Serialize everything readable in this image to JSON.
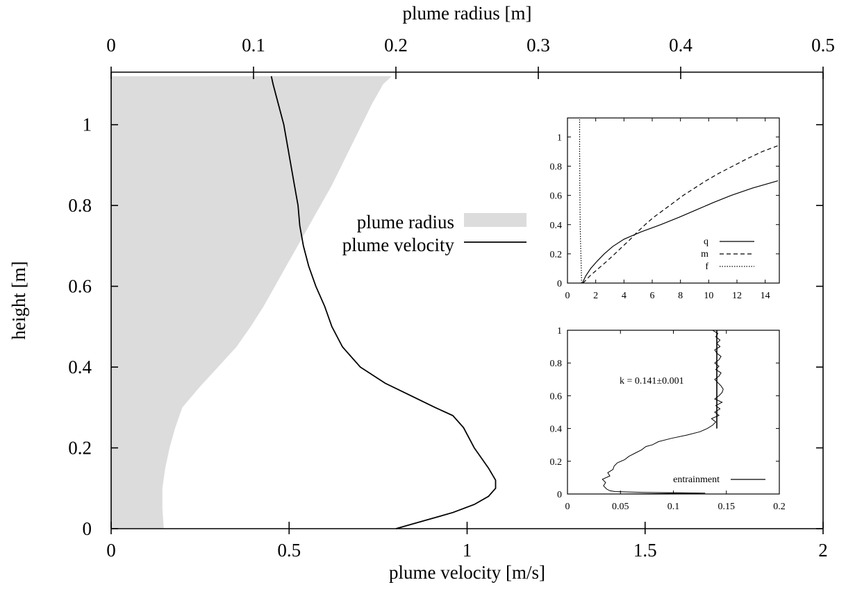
{
  "chart_data": [
    {
      "type": "line",
      "xlabel": "plume velocity [m/s]",
      "x2label": "plume radius [m]",
      "ylabel": "height [m]",
      "xlim": [
        0,
        2
      ],
      "x2lim": [
        0,
        0.5
      ],
      "ylim": [
        0,
        1.13
      ],
      "x_ticks": [
        "0",
        "0.5",
        "1",
        "1.5",
        "2"
      ],
      "x2_ticks": [
        "0",
        "0.1",
        "0.2",
        "0.3",
        "0.4",
        "0.5"
      ],
      "y_ticks": [
        "0",
        "0.2",
        "0.4",
        "0.6",
        "0.8",
        "1"
      ],
      "legend_position": "center-right",
      "series": [
        {
          "name": "plume radius",
          "style": "filled-area",
          "color": "#dcdcdc",
          "x_axis": "top",
          "y": [
            0,
            0.05,
            0.1,
            0.15,
            0.2,
            0.25,
            0.3,
            0.35,
            0.4,
            0.45,
            0.5,
            0.55,
            0.6,
            0.65,
            0.7,
            0.75,
            0.8,
            0.85,
            0.9,
            0.95,
            1.0,
            1.05,
            1.1,
            1.12
          ],
          "x": [
            0.037,
            0.036,
            0.036,
            0.038,
            0.041,
            0.045,
            0.05,
            0.062,
            0.075,
            0.088,
            0.098,
            0.107,
            0.115,
            0.123,
            0.131,
            0.139,
            0.147,
            0.155,
            0.162,
            0.169,
            0.176,
            0.183,
            0.191,
            0.197
          ]
        },
        {
          "name": "plume velocity",
          "style": "solid",
          "color": "#000000",
          "x_axis": "bottom",
          "y": [
            0,
            0.02,
            0.04,
            0.06,
            0.08,
            0.1,
            0.12,
            0.15,
            0.2,
            0.25,
            0.28,
            0.3,
            0.33,
            0.36,
            0.4,
            0.45,
            0.5,
            0.55,
            0.6,
            0.65,
            0.7,
            0.75,
            0.8,
            0.85,
            0.9,
            0.95,
            1.0,
            1.05,
            1.1,
            1.12
          ],
          "x": [
            0.8,
            0.88,
            0.96,
            1.02,
            1.06,
            1.08,
            1.08,
            1.06,
            1.02,
            0.99,
            0.96,
            0.91,
            0.84,
            0.77,
            0.7,
            0.65,
            0.62,
            0.6,
            0.575,
            0.555,
            0.54,
            0.53,
            0.525,
            0.515,
            0.505,
            0.495,
            0.485,
            0.47,
            0.455,
            0.45
          ]
        }
      ]
    },
    {
      "type": "line",
      "xlim": [
        0,
        15
      ],
      "ylim": [
        0,
        1.13
      ],
      "x_ticks": [
        "0",
        "2",
        "4",
        "6",
        "8",
        "10",
        "12",
        "14"
      ],
      "y_ticks": [
        "0",
        "0.2",
        "0.4",
        "0.6",
        "0.8",
        "1"
      ],
      "legend_position": "bottom-right",
      "series": [
        {
          "name": "q",
          "style": "solid",
          "y": [
            0,
            0.05,
            0.1,
            0.15,
            0.2,
            0.25,
            0.3,
            0.35,
            0.4,
            0.45,
            0.5,
            0.55,
            0.6,
            0.65,
            0.7
          ],
          "x": [
            1.05,
            1.3,
            1.65,
            2.1,
            2.6,
            3.2,
            4.0,
            5.2,
            6.6,
            7.9,
            9.1,
            10.3,
            11.6,
            13.1,
            14.9
          ]
        },
        {
          "name": "m",
          "style": "dashed",
          "y": [
            0,
            0.05,
            0.1,
            0.15,
            0.2,
            0.25,
            0.3,
            0.35,
            0.4,
            0.45,
            0.5,
            0.55,
            0.6,
            0.65,
            0.7,
            0.75,
            0.8,
            0.85,
            0.9,
            0.94
          ],
          "x": [
            1.1,
            1.6,
            2.2,
            2.8,
            3.35,
            3.9,
            4.45,
            4.95,
            5.5,
            6.1,
            6.8,
            7.5,
            8.2,
            9.0,
            9.8,
            10.7,
            11.7,
            12.7,
            13.8,
            14.9
          ]
        },
        {
          "name": "f",
          "style": "dotted",
          "y": [
            0,
            0.1,
            0.2,
            0.3,
            0.4,
            0.5,
            0.6,
            0.7,
            0.8,
            0.9,
            1.0,
            1.1,
            1.13
          ],
          "x": [
            1.0,
            0.98,
            0.95,
            0.92,
            0.9,
            0.89,
            0.88,
            0.87,
            0.87,
            0.86,
            0.86,
            0.86,
            0.86
          ]
        }
      ]
    },
    {
      "type": "line",
      "xlim": [
        0,
        0.2
      ],
      "ylim": [
        0,
        1
      ],
      "x_ticks": [
        "0",
        "0.05",
        "0.1",
        "0.15",
        "0.2"
      ],
      "y_ticks": [
        "0",
        "0.2",
        "0.4",
        "0.6",
        "0.8",
        "1"
      ],
      "legend_position": "bottom-right",
      "annotation": "k = 0.141±0.001",
      "reference_line": {
        "x": 0.141,
        "y": [
          0.4,
          1.0
        ]
      },
      "series": [
        {
          "name": "entrainment",
          "style": "solid",
          "y": [
            0.0,
            0.005,
            0.01,
            0.015,
            0.02,
            0.03,
            0.05,
            0.07,
            0.09,
            0.11,
            0.13,
            0.15,
            0.17,
            0.19,
            0.21,
            0.23,
            0.25,
            0.27,
            0.29,
            0.3,
            0.32,
            0.34,
            0.36,
            0.38,
            0.4,
            0.42,
            0.44,
            0.46,
            0.48,
            0.5,
            0.52,
            0.54,
            0.56,
            0.58,
            0.6,
            0.62,
            0.64,
            0.66,
            0.68,
            0.7,
            0.72,
            0.74,
            0.76,
            0.78,
            0.8,
            0.82,
            0.84,
            0.86,
            0.88,
            0.9,
            0.92,
            0.94,
            0.96,
            0.98,
            1.0
          ],
          "x": [
            0.05,
            0.13,
            0.07,
            0.045,
            0.04,
            0.037,
            0.034,
            0.036,
            0.033,
            0.04,
            0.038,
            0.043,
            0.044,
            0.047,
            0.054,
            0.058,
            0.064,
            0.07,
            0.074,
            0.08,
            0.086,
            0.098,
            0.113,
            0.125,
            0.132,
            0.137,
            0.14,
            0.136,
            0.143,
            0.139,
            0.144,
            0.14,
            0.146,
            0.139,
            0.143,
            0.146,
            0.147,
            0.145,
            0.142,
            0.139,
            0.143,
            0.145,
            0.14,
            0.143,
            0.139,
            0.143,
            0.145,
            0.141,
            0.139,
            0.144,
            0.141,
            0.144,
            0.14,
            0.142,
            0.137
          ]
        }
      ]
    }
  ]
}
